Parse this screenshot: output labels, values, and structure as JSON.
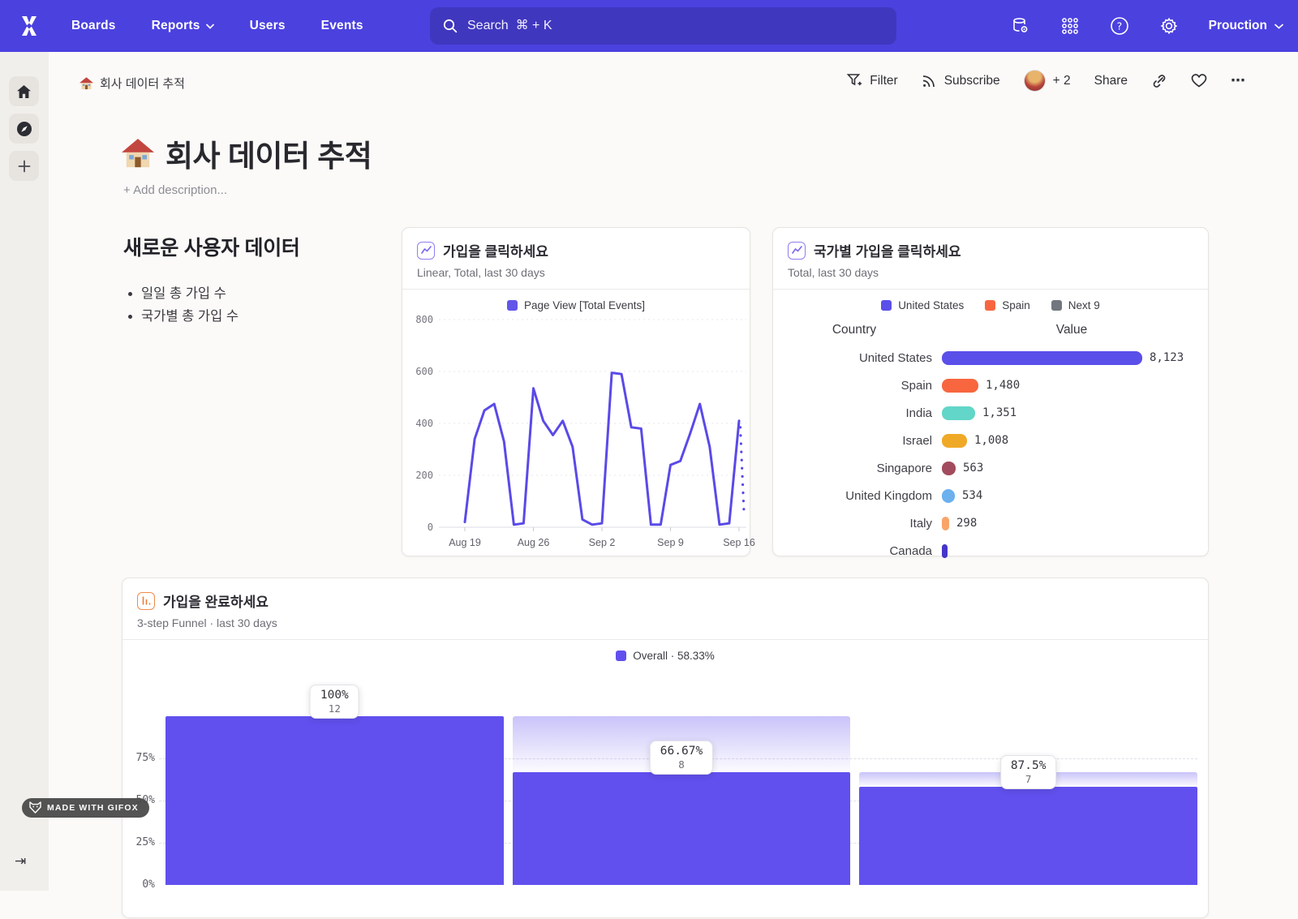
{
  "navbar": {
    "links": [
      {
        "label": "Boards"
      },
      {
        "label": "Reports"
      },
      {
        "label": "Users"
      },
      {
        "label": "Events"
      }
    ],
    "search_placeholder": "Search  ⌘ + K",
    "project": "Prouction"
  },
  "breadcrumb": {
    "label": "회사 데이터 추적"
  },
  "toolbar": {
    "filter": "Filter",
    "subscribe": "Subscribe",
    "extra_collaborators": "+ 2",
    "share": "Share",
    "more": "⋯"
  },
  "page": {
    "title": "회사 데이터 추적",
    "add_description": "+ Add description..."
  },
  "text_block": {
    "heading": "새로운 사용자 데이터",
    "bullets": [
      "일일 총 가입 수",
      "국가별 총 가입 수"
    ]
  },
  "badge": {
    "label": "MADE WITH GIFOX"
  },
  "chart_data": [
    {
      "type": "line",
      "title": "가입을 클릭하세요",
      "subtitle": "Linear, Total, last 30 days",
      "legend_label": "Page View [Total Events]",
      "color": "#5a4ae8",
      "x_ticks": [
        "Aug 19",
        "Aug 26",
        "Sep 2",
        "Sep 9",
        "Sep 16"
      ],
      "yticks": [
        0,
        200,
        400,
        600,
        800
      ],
      "ylim": [
        0,
        800
      ],
      "values": [
        20,
        340,
        450,
        475,
        330,
        10,
        15,
        535,
        410,
        355,
        410,
        310,
        30,
        10,
        15,
        595,
        590,
        385,
        380,
        10,
        10,
        240,
        255,
        360,
        475,
        310,
        10,
        15,
        410
      ],
      "projection_end": 60
    },
    {
      "type": "bar",
      "title": "국가별 가입을 클릭하세요",
      "subtitle": "Total, last 30 days",
      "legend": [
        {
          "label": "United States",
          "color": "#5b4fe9"
        },
        {
          "label": "Spain",
          "color": "#f8663f"
        },
        {
          "label": "Next 9",
          "color": "#72767e"
        }
      ],
      "columns": [
        "Country",
        "Value"
      ],
      "rows": [
        {
          "country": "United States",
          "value": "8,123",
          "num": 8123,
          "color": "#5b4fe9"
        },
        {
          "country": "Spain",
          "value": "1,480",
          "num": 1480,
          "color": "#f8663f"
        },
        {
          "country": "India",
          "value": "1,351",
          "num": 1351,
          "color": "#62d6c8"
        },
        {
          "country": "Israel",
          "value": "1,008",
          "num": 1008,
          "color": "#f0a927"
        },
        {
          "country": "Singapore",
          "value": "563",
          "num": 563,
          "color": "#a34b5e"
        },
        {
          "country": "United Kingdom",
          "value": "534",
          "num": 534,
          "color": "#6cb0ee"
        },
        {
          "country": "Italy",
          "value": "298",
          "num": 298,
          "color": "#f8a46a"
        },
        {
          "country": "Canada",
          "value": "",
          "num": 230,
          "color": "#4436c8"
        }
      ]
    },
    {
      "type": "funnel",
      "title": "가입을 완료하세요",
      "subtitle": "3-step Funnel · last 30 days",
      "legend_label": "Overall · 58.33%",
      "color": "#6150ee",
      "yticks": [
        "0%",
        "25%",
        "50%",
        "75%"
      ],
      "steps": [
        {
          "pct_label": "100%",
          "count": "12",
          "total_pct": 100,
          "band_from": 100
        },
        {
          "pct_label": "66.67%",
          "count": "8",
          "total_pct": 66.67,
          "band_from": 100
        },
        {
          "pct_label": "87.5%",
          "count": "7",
          "total_pct": 58.33,
          "band_from": 66.67
        }
      ]
    }
  ]
}
